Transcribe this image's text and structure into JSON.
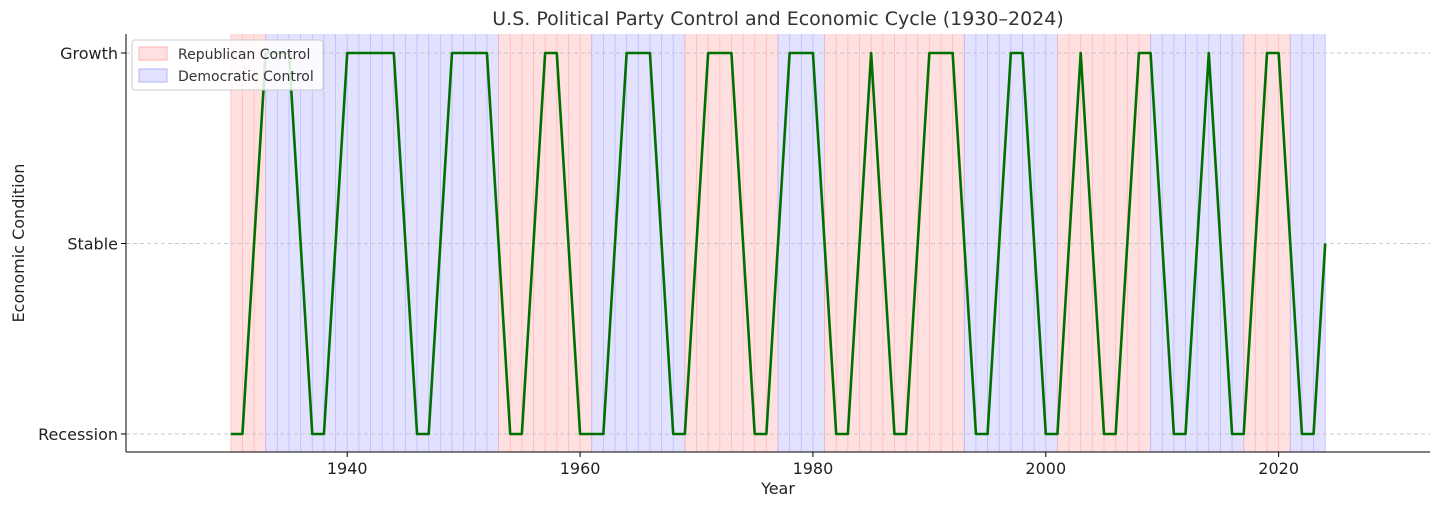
{
  "chart_data": {
    "type": "line",
    "title": "U.S. Political Party Control and Economic Cycle (1930–2024)",
    "xlabel": "Year",
    "ylabel": "Economic Condition",
    "xlim": [
      1921,
      2033
    ],
    "ylim": [
      -0.1,
      2.1
    ],
    "x_ticks": [
      1940,
      1960,
      1980,
      2000,
      2020
    ],
    "y_categories": [
      "Recession",
      "Stable",
      "Growth"
    ],
    "grid": "horizontal dashed",
    "legend_position": "top-left",
    "legend": [
      {
        "label": "Republican Control",
        "color": "#ffe0e0",
        "edge": "#ffb3b3"
      },
      {
        "label": "Democratic Control",
        "color": "#e2e2ff",
        "edge": "#b3b3ff"
      }
    ],
    "party_periods": [
      {
        "party": "Republican",
        "start": 1930,
        "end": 1933
      },
      {
        "party": "Democratic",
        "start": 1933,
        "end": 1953
      },
      {
        "party": "Republican",
        "start": 1953,
        "end": 1961
      },
      {
        "party": "Democratic",
        "start": 1961,
        "end": 1969
      },
      {
        "party": "Republican",
        "start": 1969,
        "end": 1977
      },
      {
        "party": "Democratic",
        "start": 1977,
        "end": 1981
      },
      {
        "party": "Republican",
        "start": 1981,
        "end": 1993
      },
      {
        "party": "Democratic",
        "start": 1993,
        "end": 2001
      },
      {
        "party": "Republican",
        "start": 2001,
        "end": 2009
      },
      {
        "party": "Democratic",
        "start": 2009,
        "end": 2017
      },
      {
        "party": "Republican",
        "start": 2017,
        "end": 2021
      },
      {
        "party": "Democratic",
        "start": 2021,
        "end": 2024
      }
    ],
    "line_color": "#007000",
    "series": [
      {
        "x": [
          1930,
          1931,
          1933,
          1934,
          1935,
          1937,
          1938,
          1940,
          1941,
          1942,
          1943,
          1944,
          1946,
          1947,
          1949,
          1950,
          1951,
          1952,
          1954,
          1955,
          1957,
          1958,
          1960,
          1961,
          1962,
          1964,
          1965,
          1966,
          1968,
          1969,
          1971,
          1972,
          1973,
          1975,
          1976,
          1978,
          1979,
          1980,
          1982,
          1983,
          1985,
          1987,
          1988,
          1990,
          1991,
          1992,
          1994,
          1995,
          1997,
          1998,
          2000,
          2001,
          2003,
          2005,
          2006,
          2008,
          2009,
          2011,
          2012,
          2014,
          2016,
          2017,
          2019,
          2020,
          2022,
          2023,
          2024
        ],
        "y": [
          0,
          0,
          2,
          2,
          2,
          0,
          0,
          2,
          2,
          2,
          2,
          2,
          0,
          0,
          2,
          2,
          2,
          2,
          0,
          0,
          2,
          2,
          0,
          0,
          0,
          2,
          2,
          2,
          0,
          0,
          2,
          2,
          2,
          0,
          0,
          2,
          2,
          2,
          0,
          0,
          2,
          0,
          0,
          2,
          2,
          2,
          0,
          0,
          2,
          2,
          0,
          0,
          2,
          0,
          0,
          2,
          2,
          0,
          0,
          2,
          0,
          0,
          2,
          2,
          0,
          0,
          1
        ]
      }
    ]
  }
}
